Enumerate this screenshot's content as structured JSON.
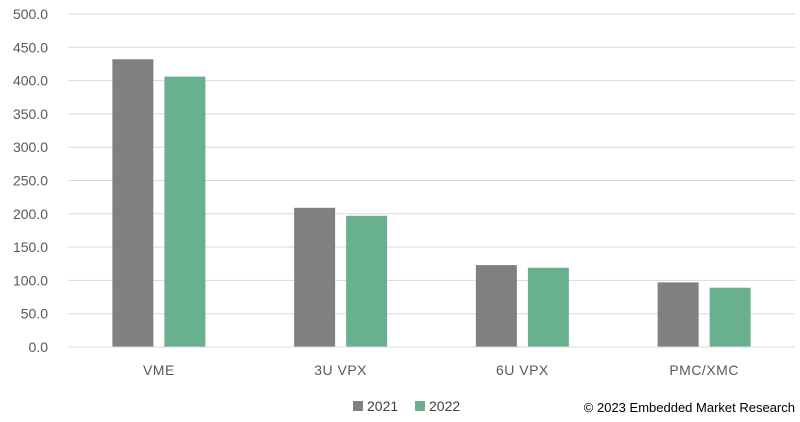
{
  "chart_data": {
    "type": "bar",
    "categories": [
      "VME",
      "3U VPX",
      "6U VPX",
      "PMC/XMC"
    ],
    "series": [
      {
        "name": "2021",
        "color": "#808080",
        "values": [
          432,
          209,
          123,
          97
        ]
      },
      {
        "name": "2022",
        "color": "#69B08E",
        "values": [
          406,
          197,
          119,
          89
        ]
      }
    ],
    "y_ticks": [
      "0.0",
      "50.0",
      "100.0",
      "150.0",
      "200.0",
      "250.0",
      "300.0",
      "350.0",
      "400.0",
      "450.0",
      "500.0"
    ],
    "ylim": [
      0,
      500
    ],
    "grid": true,
    "legend": "bottom-center"
  },
  "copyright": "© 2023 Embedded Market Research"
}
